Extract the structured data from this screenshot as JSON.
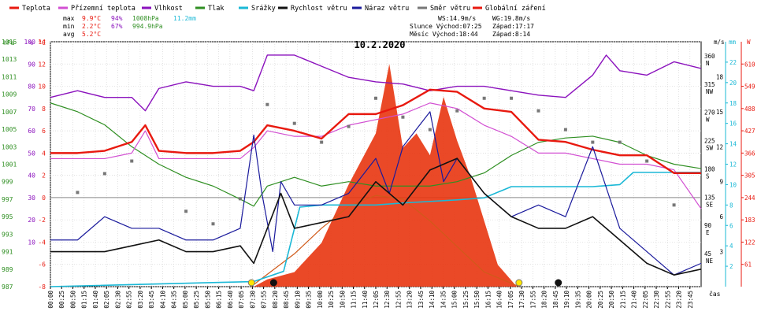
{
  "chart_data": {
    "type": "line",
    "title": "10.2.2020",
    "xlabel": "čas",
    "legend": [
      {
        "name": "Teplota",
        "color": "#e8190f"
      },
      {
        "name": "Přízemní teplota",
        "color": "#d24fd2"
      },
      {
        "name": "Vlhkost",
        "color": "#8b12bd"
      },
      {
        "name": "Tlak",
        "color": "#2f8f22"
      },
      {
        "name": "Srážky",
        "color": "#1ab8d6"
      },
      {
        "name": "Rychlost větru",
        "color": "#111111"
      },
      {
        "name": "Náraz větru",
        "color": "#1a1a9c"
      },
      {
        "name": "Směr větru",
        "color": "#777777"
      },
      {
        "name": "Globální záření",
        "color": "#e8190f"
      }
    ],
    "stats": {
      "rows": [
        {
          "label": "max",
          "temp": "9.9°C",
          "hum": "94%",
          "press": "1008hPa",
          "rain": "11.2mm"
        },
        {
          "label": "min",
          "temp": "2.2°C",
          "hum": "67%",
          "press": "994.9hPa",
          "rain": ""
        },
        {
          "label": "avg",
          "temp": "5.2°C",
          "hum": "",
          "press": "",
          "rain": ""
        }
      ],
      "wind": "WS:14.9m/s",
      "gust": "WG:19.8m/s",
      "sun_rise": "Slunce Východ:07:25",
      "sun_set": "Západ:17:17",
      "moon_rise": "Měsíc Východ:18:44",
      "moon_set": "Západ:8:14"
    },
    "axes": {
      "hpa_unit": "hPa",
      "hpa_ticks": [
        "1015",
        "1013",
        "1011",
        "1009",
        "1007",
        "1005",
        "1003",
        "1001",
        "999",
        "997",
        "995",
        "993",
        "991",
        "989",
        "987"
      ],
      "pct_unit": "%",
      "pct_ticks": [
        "100",
        "90",
        "80",
        "70",
        "60",
        "50",
        "40",
        "30",
        "20",
        "10"
      ],
      "temp_unit": "°C",
      "temp_ticks": [
        "14",
        "12",
        "10",
        "8",
        "6",
        "4",
        "2",
        "0",
        "-2",
        "-4",
        "-6",
        "-8"
      ],
      "dir_unit": "",
      "dir_ticks": [
        {
          "deg": "360",
          "card": "N"
        },
        {
          "deg": "315",
          "card": "NW"
        },
        {
          "deg": "270",
          "card": "W"
        },
        {
          "deg": "225",
          "card": "SW"
        },
        {
          "deg": "180",
          "card": "S"
        },
        {
          "deg": "135",
          "card": "SE"
        },
        {
          "deg": "90",
          "card": "E"
        },
        {
          "deg": "45",
          "card": "NE"
        }
      ],
      "ms_unit": "m/s",
      "ms_ticks": [
        "18",
        "15",
        "12",
        "9",
        "6",
        "3"
      ],
      "mm_unit": "mm",
      "mm_ticks": [
        "22",
        "20",
        "18",
        "16",
        "14",
        "12",
        "10",
        "8",
        "6",
        "4",
        "2"
      ],
      "w_unit": "W",
      "w_ticks": [
        "610",
        "549",
        "488",
        "427",
        "366",
        "305",
        "244",
        "183",
        "122",
        "61"
      ],
      "time_ticks": [
        "00:00",
        "00:25",
        "00:50",
        "01:15",
        "01:40",
        "02:05",
        "02:30",
        "02:55",
        "03:20",
        "03:45",
        "04:10",
        "04:35",
        "05:00",
        "05:25",
        "05:50",
        "06:15",
        "06:40",
        "07:05",
        "07:30",
        "07:55",
        "08:20",
        "08:45",
        "09:10",
        "09:35",
        "10:00",
        "10:25",
        "10:50",
        "11:15",
        "11:40",
        "12:05",
        "12:30",
        "12:55",
        "13:20",
        "13:45",
        "14:10",
        "14:35",
        "15:00",
        "15:25",
        "15:50",
        "16:15",
        "16:40",
        "17:05",
        "17:30",
        "17:55",
        "18:20",
        "18:45",
        "19:10",
        "19:35",
        "20:00",
        "20:25",
        "20:50",
        "21:15",
        "21:40",
        "22:05",
        "22:30",
        "22:55",
        "23:20",
        "23:45"
      ]
    },
    "series": {
      "temperature_C": {
        "x": [
          0,
          1,
          2,
          3,
          3.5,
          4,
          5,
          6,
          7,
          7.5,
          8,
          9,
          10,
          11,
          12,
          13,
          14,
          15,
          16,
          17,
          18,
          19,
          20,
          21,
          22,
          22.5,
          23,
          24
        ],
        "y": [
          4,
          4,
          4.2,
          5,
          6.5,
          4.2,
          4,
          4,
          4.2,
          5,
          6.5,
          6,
          5.3,
          7.5,
          7.5,
          8.3,
          9.7,
          9.5,
          8,
          7.7,
          5.2,
          5,
          4.3,
          3.8,
          3.8,
          3,
          2.2,
          2.2
        ]
      },
      "ground_temp_C": {
        "x": [
          0,
          1,
          2,
          3,
          3.5,
          4,
          5,
          6,
          7,
          7.5,
          8,
          9,
          10,
          11,
          12,
          13,
          14,
          15,
          16,
          17,
          18,
          19,
          20,
          21,
          22,
          23,
          24
        ],
        "y": [
          3.5,
          3.5,
          3.5,
          4,
          6,
          3.5,
          3.5,
          3.5,
          3.5,
          4.5,
          6,
          5.5,
          5.5,
          6.5,
          7,
          7.5,
          8.5,
          8,
          6.5,
          5.5,
          4,
          4,
          3.5,
          3,
          3,
          2.5,
          -1
        ]
      },
      "humidity_pct": {
        "x": [
          0,
          1,
          2,
          3,
          3.5,
          4,
          5,
          6,
          7,
          7.5,
          8,
          9,
          10,
          11,
          12,
          13,
          14,
          15,
          16,
          17,
          18,
          19,
          20,
          20.5,
          21,
          22,
          23,
          24
        ],
        "y": [
          75,
          78,
          75,
          75,
          69,
          79,
          82,
          80,
          80,
          78,
          94,
          94,
          89,
          84,
          82,
          81,
          78,
          80,
          80,
          78,
          76,
          75,
          85,
          94,
          87,
          85,
          91,
          88
        ]
      },
      "pressure_hPa": {
        "x": [
          0,
          1,
          2,
          3,
          4,
          5,
          6,
          7,
          7.5,
          8,
          9,
          10,
          11,
          12,
          13,
          14,
          15,
          16,
          17,
          18,
          19,
          20,
          21,
          22,
          23,
          24
        ],
        "y": [
          1008,
          1007,
          1005.5,
          1003,
          1001,
          999.5,
          998.5,
          997,
          996.2,
          998.5,
          999.5,
          998.5,
          999,
          998.5,
          998.5,
          998.5,
          999,
          1000,
          1002,
          1003.5,
          1004,
          1004.2,
          1003.5,
          1002,
          1001,
          1000.5
        ]
      },
      "rain_mm": {
        "x": [
          0,
          7.5,
          8.6,
          9.2,
          10,
          12,
          13,
          15,
          16,
          17,
          20,
          21,
          21.5,
          23,
          24
        ],
        "y": [
          0,
          0.5,
          1.5,
          7.8,
          8,
          8,
          8.2,
          8.5,
          8.7,
          9.8,
          9.8,
          10,
          11.2,
          11.2,
          11.2
        ]
      },
      "wind_speed_ms": {
        "x": [
          0,
          1,
          2,
          3,
          4,
          5,
          6,
          7,
          7.5,
          8,
          8.5,
          9,
          10,
          11,
          12,
          13,
          14,
          15,
          16,
          17,
          18,
          19,
          20,
          21,
          22,
          23,
          24
        ],
        "y": [
          3,
          3,
          3,
          3.5,
          4,
          3,
          3,
          3.5,
          2,
          5,
          8,
          5,
          5.5,
          6,
          9,
          7,
          10,
          11,
          8,
          6,
          5,
          5,
          6,
          4,
          2,
          1,
          1.5
        ]
      },
      "wind_gust_ms": {
        "x": [
          0,
          1,
          2,
          3,
          4,
          5,
          6,
          7,
          7.5,
          7.8,
          8.2,
          8.5,
          9,
          10,
          11,
          12,
          12.5,
          13,
          14,
          14.5,
          15,
          16,
          17,
          18,
          19,
          20,
          21,
          22,
          23,
          24
        ],
        "y": [
          4,
          4,
          6,
          5,
          5,
          4,
          4,
          5,
          13,
          8,
          3,
          9,
          7,
          7,
          8,
          11,
          8,
          12,
          15,
          9,
          11,
          8,
          6,
          7,
          6,
          12,
          5,
          3,
          1,
          2
        ]
      },
      "radiation_W": {
        "x": [
          7.5,
          8,
          9,
          10,
          11,
          11.5,
          12,
          12.5,
          13,
          13.5,
          14,
          14.5,
          15,
          15.5,
          16,
          16.5,
          17.2
        ],
        "y": [
          0,
          20,
          40,
          120,
          280,
          350,
          420,
          610,
          380,
          420,
          360,
          520,
          400,
          300,
          180,
          60,
          0
        ]
      },
      "clear_sky_W": {
        "x": [
          7.4,
          9,
          10,
          11,
          12,
          13,
          14,
          15,
          16,
          17.3
        ],
        "y": [
          0,
          90,
          160,
          220,
          250,
          240,
          180,
          110,
          40,
          0
        ]
      }
    },
    "sun_markers": {
      "sunrise": "07:25",
      "sunset": "17:17",
      "moonrise": "18:44",
      "moonset": "08:14"
    }
  }
}
